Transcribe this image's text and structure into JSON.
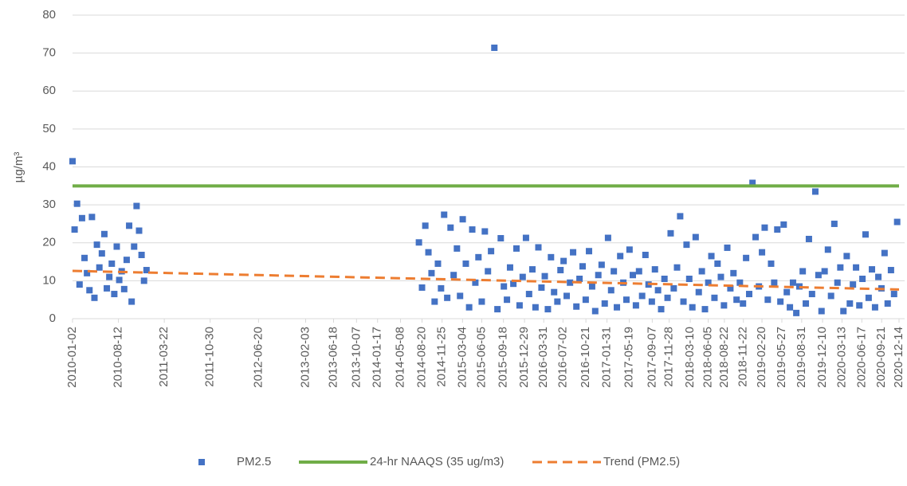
{
  "chart_data": {
    "type": "scatter",
    "y_label": "µg/m³",
    "xlim": [
      "2010-01-02",
      "2020-12-14"
    ],
    "xticks": [
      "2010-01-02",
      "2010-08-12",
      "2011-03-22",
      "2011-10-30",
      "2012-06-20",
      "2013-02-03",
      "2013-06-18",
      "2013-10-07",
      "2014-01-17",
      "2014-05-08",
      "2014-08-20",
      "2014-11-25",
      "2015-03-04",
      "2015-06-05",
      "2015-09-18",
      "2015-12-29",
      "2016-03-31",
      "2016-07-02",
      "2016-10-21",
      "2017-01-31",
      "2017-05-19",
      "2017-09-07",
      "2017-11-28",
      "2018-03-10",
      "2018-06-05",
      "2018-08-22",
      "2018-11-22",
      "2019-02-20",
      "2019-05-27",
      "2019-08-31",
      "2019-12-10",
      "2020-03-13",
      "2020-06-17",
      "2020-09-21",
      "2020-12-14"
    ],
    "ylim": [
      0,
      80
    ],
    "yticks": [
      0,
      10,
      20,
      30,
      40,
      50,
      60,
      70,
      80
    ],
    "grid": true,
    "series": [
      {
        "name": "PM2.5",
        "type": "scatter",
        "color": "#4472c4",
        "x": [
          "2010-01-02",
          "2010-01-12",
          "2010-01-24",
          "2010-02-05",
          "2010-02-17",
          "2010-03-01",
          "2010-03-13",
          "2010-03-25",
          "2010-04-06",
          "2010-04-18",
          "2010-04-30",
          "2010-05-12",
          "2010-05-24",
          "2010-06-05",
          "2010-06-17",
          "2010-06-29",
          "2010-07-11",
          "2010-07-23",
          "2010-08-04",
          "2010-08-16",
          "2010-08-28",
          "2010-09-09",
          "2010-09-21",
          "2010-10-03",
          "2010-10-15",
          "2010-10-27",
          "2010-11-08",
          "2010-11-20",
          "2010-12-02",
          "2010-12-14",
          "2010-12-26",
          "2014-08-05",
          "2014-08-20",
          "2014-09-05",
          "2014-09-20",
          "2014-10-05",
          "2014-10-20",
          "2014-11-05",
          "2014-11-20",
          "2014-12-05",
          "2014-12-20",
          "2015-01-05",
          "2015-01-20",
          "2015-02-05",
          "2015-02-20",
          "2015-03-05",
          "2015-03-20",
          "2015-04-05",
          "2015-04-20",
          "2015-05-05",
          "2015-05-20",
          "2015-06-05",
          "2015-06-20",
          "2015-07-05",
          "2015-07-20",
          "2015-08-05",
          "2015-08-20",
          "2015-09-05",
          "2015-09-20",
          "2015-10-05",
          "2015-10-20",
          "2015-11-05",
          "2015-11-20",
          "2015-12-05",
          "2015-12-20",
          "2016-01-05",
          "2016-01-20",
          "2016-02-05",
          "2016-02-20",
          "2016-03-05",
          "2016-03-20",
          "2016-04-05",
          "2016-04-20",
          "2016-05-05",
          "2016-05-20",
          "2016-06-05",
          "2016-06-20",
          "2016-07-05",
          "2016-07-20",
          "2016-08-05",
          "2016-08-20",
          "2016-09-05",
          "2016-09-20",
          "2016-10-05",
          "2016-10-20",
          "2016-11-05",
          "2016-11-20",
          "2016-12-05",
          "2016-12-20",
          "2017-01-05",
          "2017-01-20",
          "2017-02-05",
          "2017-02-20",
          "2017-03-05",
          "2017-03-20",
          "2017-04-05",
          "2017-04-20",
          "2017-05-05",
          "2017-05-20",
          "2017-06-05",
          "2017-06-20",
          "2017-07-05",
          "2017-07-20",
          "2017-08-05",
          "2017-08-20",
          "2017-09-05",
          "2017-09-20",
          "2017-10-05",
          "2017-10-20",
          "2017-11-05",
          "2017-11-20",
          "2017-12-05",
          "2017-12-20",
          "2018-01-05",
          "2018-01-20",
          "2018-02-05",
          "2018-02-20",
          "2018-03-05",
          "2018-03-20",
          "2018-04-05",
          "2018-04-20",
          "2018-05-05",
          "2018-05-20",
          "2018-06-05",
          "2018-06-20",
          "2018-07-05",
          "2018-07-20",
          "2018-08-05",
          "2018-08-20",
          "2018-09-05",
          "2018-09-20",
          "2018-10-05",
          "2018-10-20",
          "2018-11-05",
          "2018-11-20",
          "2018-12-05",
          "2018-12-20",
          "2019-01-05",
          "2019-01-20",
          "2019-02-05",
          "2019-02-20",
          "2019-03-05",
          "2019-03-20",
          "2019-04-05",
          "2019-04-20",
          "2019-05-05",
          "2019-05-20",
          "2019-06-05",
          "2019-06-20",
          "2019-07-05",
          "2019-07-20",
          "2019-08-05",
          "2019-08-20",
          "2019-09-05",
          "2019-09-20",
          "2019-10-05",
          "2019-10-20",
          "2019-11-05",
          "2019-11-20",
          "2019-12-05",
          "2019-12-20",
          "2020-01-05",
          "2020-01-20",
          "2020-02-05",
          "2020-02-20",
          "2020-03-05",
          "2020-03-20",
          "2020-04-05",
          "2020-04-20",
          "2020-05-05",
          "2020-05-20",
          "2020-06-05",
          "2020-06-20",
          "2020-07-05",
          "2020-07-20",
          "2020-08-05",
          "2020-08-20",
          "2020-09-05",
          "2020-09-20",
          "2020-10-05",
          "2020-10-20",
          "2020-11-05",
          "2020-11-20",
          "2020-12-05"
        ],
        "values": [
          41.5,
          23.5,
          30.3,
          9.0,
          26.5,
          16.0,
          12.0,
          7.5,
          26.8,
          5.5,
          19.5,
          13.5,
          17.2,
          22.3,
          8.0,
          11.0,
          14.5,
          6.5,
          19.0,
          10.2,
          12.5,
          7.8,
          15.5,
          24.5,
          4.5,
          19.0,
          29.7,
          23.2,
          16.8,
          10.0,
          12.8,
          20.1,
          8.2,
          24.5,
          17.5,
          12.0,
          4.5,
          14.5,
          8.0,
          27.4,
          5.5,
          24.0,
          11.5,
          18.5,
          6.0,
          26.2,
          14.5,
          3.0,
          23.5,
          9.5,
          16.2,
          4.5,
          23.0,
          12.5,
          17.8,
          71.4,
          2.5,
          21.2,
          8.5,
          5.0,
          13.5,
          9.2,
          18.5,
          3.5,
          11.0,
          21.3,
          6.5,
          13.0,
          3.0,
          18.8,
          8.2,
          11.2,
          2.5,
          16.2,
          7.0,
          4.5,
          12.8,
          15.2,
          6.0,
          9.5,
          17.5,
          3.2,
          10.5,
          13.8,
          5.0,
          17.8,
          8.5,
          2.0,
          11.5,
          14.2,
          4.0,
          21.3,
          7.5,
          12.5,
          3.0,
          16.5,
          9.5,
          5.0,
          18.2,
          11.5,
          3.5,
          12.5,
          6.0,
          16.8,
          9.0,
          4.5,
          13.0,
          7.5,
          2.5,
          10.5,
          5.5,
          22.5,
          8.0,
          13.5,
          27.0,
          4.5,
          19.5,
          10.5,
          3.0,
          21.5,
          7.0,
          12.5,
          2.5,
          9.5,
          16.5,
          5.5,
          14.5,
          11.0,
          3.5,
          18.7,
          8.0,
          12.0,
          5.0,
          9.5,
          4.0,
          16.0,
          6.5,
          35.8,
          21.5,
          8.5,
          17.5,
          24.0,
          5.0,
          14.5,
          9.5,
          23.5,
          4.5,
          24.8,
          7.0,
          3.0,
          9.5,
          1.5,
          8.5,
          12.5,
          4.0,
          21.0,
          6.5,
          33.5,
          11.5,
          2.0,
          12.5,
          18.2,
          6.0,
          25.0,
          9.5,
          13.5,
          2.0,
          16.5,
          4.0,
          9.0,
          13.5,
          3.5,
          10.5,
          22.2,
          5.5,
          13.0,
          3.0,
          11.0,
          8.0,
          17.3,
          4.0,
          12.8,
          6.5,
          25.5
        ]
      },
      {
        "name": "24-hr NAAQS (35 ug/m3)",
        "type": "line",
        "color": "#70ad47",
        "dash": false,
        "x": [
          "2010-01-02",
          "2020-12-14"
        ],
        "values": [
          35,
          35
        ]
      },
      {
        "name": "Trend (PM2.5)",
        "type": "line",
        "color": "#ed7d31",
        "dash": true,
        "x": [
          "2010-01-02",
          "2020-12-14"
        ],
        "values": [
          12.6,
          7.7
        ]
      }
    ]
  }
}
